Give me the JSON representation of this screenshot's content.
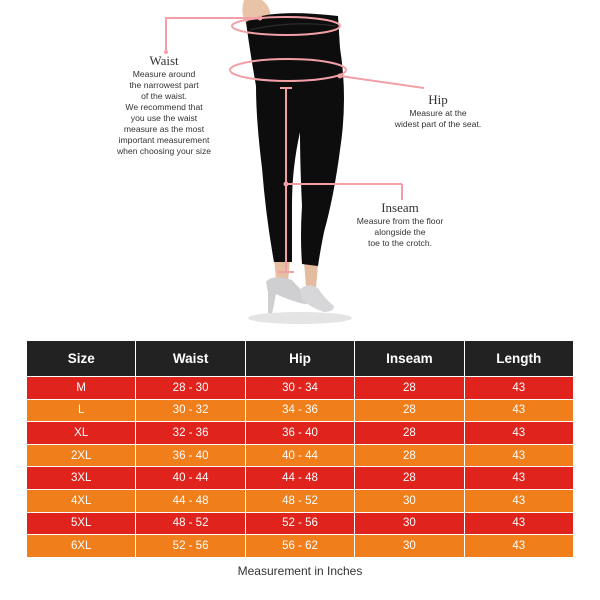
{
  "figure": {
    "icons": [
      "leggings-model-illustration",
      "measuring-tape-icon"
    ],
    "accent_color": "#f2a0a6",
    "garment_color": "#0d0d0d",
    "waist": {
      "title": "Waist",
      "description": "Measure around\nthe narrowest part\nof the waist.\nWe recommend that\nyou use the waist\nmeasure as the most\nimportant measurement\nwhen choosing your size"
    },
    "hip": {
      "title": "Hip",
      "description": "Measure at the\nwidest part of the seat."
    },
    "inseam": {
      "title": "Inseam",
      "description": "Measure from the floor\nalongside the\ntoe to the crotch."
    }
  },
  "table": {
    "header_color": "#222222",
    "row_colors": [
      "#e0231c",
      "#f07e1a"
    ],
    "headers": [
      "Size",
      "Waist",
      "Hip",
      "Inseam",
      "Length"
    ],
    "rows": [
      [
        "M",
        "28 - 30",
        "30 - 34",
        "28",
        "43"
      ],
      [
        "L",
        "30 - 32",
        "34 - 36",
        "28",
        "43"
      ],
      [
        "XL",
        "32 - 36",
        "36 - 40",
        "28",
        "43"
      ],
      [
        "2XL",
        "36 - 40",
        "40 - 44",
        "28",
        "43"
      ],
      [
        "3XL",
        "40 - 44",
        "44 - 48",
        "28",
        "43"
      ],
      [
        "4XL",
        "44 - 48",
        "48 - 52",
        "30",
        "43"
      ],
      [
        "5XL",
        "48 - 52",
        "52 - 56",
        "30",
        "43"
      ],
      [
        "6XL",
        "52 - 56",
        "56 - 62",
        "30",
        "43"
      ]
    ]
  },
  "footnote": "Measurement in Inches"
}
